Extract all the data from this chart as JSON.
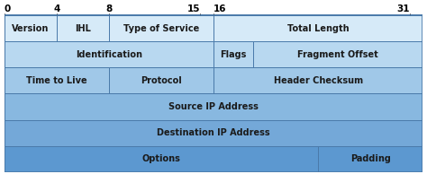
{
  "total_bits": 32,
  "bit_labels": [
    {
      "text": "0",
      "x": 0,
      "ha": "left"
    },
    {
      "text": "4",
      "x": 4,
      "ha": "center"
    },
    {
      "text": "8",
      "x": 8,
      "ha": "center"
    },
    {
      "text": "15",
      "x": 15,
      "ha": "right"
    },
    {
      "text": "16",
      "x": 16,
      "ha": "left"
    },
    {
      "text": "31",
      "x": 31,
      "ha": "right"
    }
  ],
  "rows": [
    {
      "cells": [
        {
          "text": "Version",
          "start": 0,
          "end": 4
        },
        {
          "text": "IHL",
          "start": 4,
          "end": 8
        },
        {
          "text": "Type of Service",
          "start": 8,
          "end": 16
        },
        {
          "text": "Total Length",
          "start": 16,
          "end": 32
        }
      ],
      "color": "#d6eaf8"
    },
    {
      "cells": [
        {
          "text": "Identification",
          "start": 0,
          "end": 16
        },
        {
          "text": "Flags",
          "start": 16,
          "end": 19
        },
        {
          "text": "Fragment Offset",
          "start": 19,
          "end": 32
        }
      ],
      "color": "#b8d8f0"
    },
    {
      "cells": [
        {
          "text": "Time to Live",
          "start": 0,
          "end": 8
        },
        {
          "text": "Protocol",
          "start": 8,
          "end": 16
        },
        {
          "text": "Header Checksum",
          "start": 16,
          "end": 32
        }
      ],
      "color": "#a0c8e8"
    },
    {
      "cells": [
        {
          "text": "Source IP Address",
          "start": 0,
          "end": 32
        }
      ],
      "color": "#88b8e0"
    },
    {
      "cells": [
        {
          "text": "Destination IP Address",
          "start": 0,
          "end": 32
        }
      ],
      "color": "#74a8d8"
    },
    {
      "cells": [
        {
          "text": "Options",
          "start": 0,
          "end": 24
        },
        {
          "text": "Padding",
          "start": 24,
          "end": 32
        }
      ],
      "color": "#5c98d0"
    }
  ],
  "border_color": "#4a7aaa",
  "text_color": "#1a1a1a",
  "font_size": 7.0,
  "label_font_size": 7.5,
  "background_color": "#ffffff"
}
